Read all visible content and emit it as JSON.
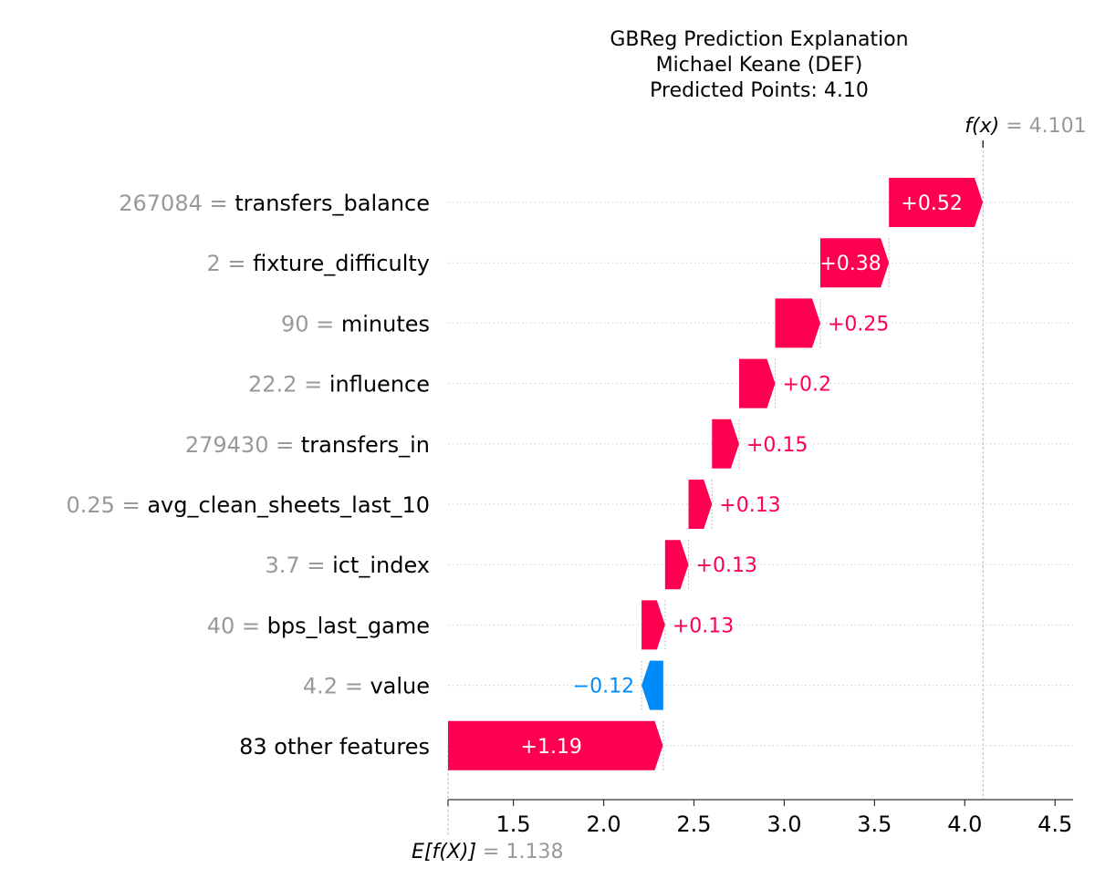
{
  "chart_data": {
    "type": "waterfall",
    "title": [
      "GBReg Prediction Explanation",
      "Michael Keane (DEF)",
      "Predicted Points: 4.10"
    ],
    "base_value": 1.138,
    "base_value_label": "1.138",
    "output_value": 4.101,
    "output_value_label": "4.101",
    "fx_label": "f(x)",
    "efx_label": "E[f(X)]",
    "xlim": [
      1.138,
      4.6
    ],
    "xticks": [
      "1.5",
      "2.0",
      "2.5",
      "3.0",
      "3.5",
      "4.0",
      "4.5"
    ],
    "colors": {
      "positive": "#ff0051",
      "negative": "#008bfb",
      "feature_value": "#999999",
      "grid": "#cccccc"
    },
    "features": [
      {
        "feature_value": "267084",
        "name": "transfers_balance",
        "contribution": 0.52,
        "label": "+0.52",
        "start": 3.58
      },
      {
        "feature_value": "2",
        "name": "fixture_difficulty",
        "contribution": 0.38,
        "label": "+0.38",
        "start": 3.2
      },
      {
        "feature_value": "90",
        "name": "minutes",
        "contribution": 0.25,
        "label": "+0.25",
        "start": 2.95
      },
      {
        "feature_value": "22.2",
        "name": "influence",
        "contribution": 0.2,
        "label": "+0.2",
        "start": 2.75
      },
      {
        "feature_value": "279430",
        "name": "transfers_in",
        "contribution": 0.15,
        "label": "+0.15",
        "start": 2.6
      },
      {
        "feature_value": "0.25",
        "name": "avg_clean_sheets_last_10",
        "contribution": 0.13,
        "label": "+0.13",
        "start": 2.47
      },
      {
        "feature_value": "3.7",
        "name": "ict_index",
        "contribution": 0.13,
        "label": "+0.13",
        "start": 2.34
      },
      {
        "feature_value": "40",
        "name": "bps_last_game",
        "contribution": 0.13,
        "label": "+0.13",
        "start": 2.21
      },
      {
        "feature_value": "4.2",
        "name": "value",
        "contribution": -0.12,
        "label": "−0.12",
        "start": 2.33
      },
      {
        "feature_value": "",
        "name": "83 other features",
        "contribution": 1.19,
        "label": "+1.19",
        "start": 1.138
      }
    ]
  }
}
